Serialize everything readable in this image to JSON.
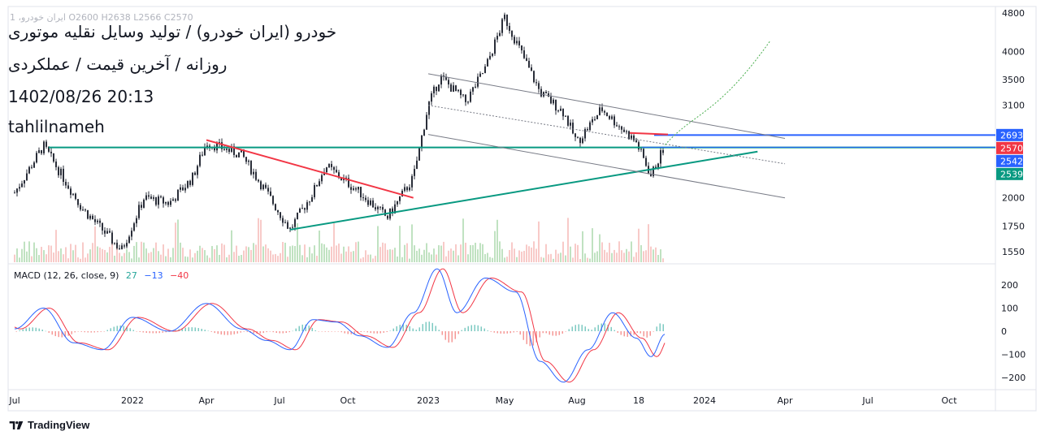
{
  "legend": {
    "symbol": "ایران خودرو، 1",
    "ohlc": "O2600  H2638  L2566  C2570"
  },
  "annotations": [
    "خودرو (ایران خودرو) / تولید وسایل نقلیه موتوری",
    "روزانه / آخرین قیمت / عملکردی",
    "1402/08/26 20:13",
    "tahlilnameh"
  ],
  "macd": {
    "label": "MACD (12, 26, close, 9)",
    "hist_value": "27",
    "macd_value": "−13",
    "signal_value": "−40",
    "ticks": [
      {
        "value": 200,
        "label": "200"
      },
      {
        "value": 100,
        "label": "100"
      },
      {
        "value": 0,
        "label": "0"
      },
      {
        "value": -100,
        "label": "−100"
      },
      {
        "value": -200,
        "label": "−200"
      }
    ]
  },
  "price_axis": {
    "ticks": [
      {
        "value": 4800,
        "label": "4800"
      },
      {
        "value": 4000,
        "label": "4000"
      },
      {
        "value": 3500,
        "label": "3500"
      },
      {
        "value": 3100,
        "label": "3100"
      },
      {
        "value": 2000,
        "label": "2000"
      },
      {
        "value": 1750,
        "label": "1750"
      },
      {
        "value": 1550,
        "label": "1550"
      }
    ],
    "badges": [
      {
        "value": 2693,
        "label": "2693",
        "color": "#2962ff"
      },
      {
        "value": 2570,
        "label": "2570",
        "color": "#f23645"
      },
      {
        "value": 2542,
        "label": "2542",
        "color": "#2962ff"
      },
      {
        "value": 2539,
        "label": "2539",
        "color": "#089981"
      }
    ]
  },
  "time_axis": [
    "Jul",
    "2022",
    "Apr",
    "Jul",
    "Oct",
    "2023",
    "May",
    "Aug",
    "18",
    "2024",
    "Apr",
    "Jul",
    "Oct"
  ],
  "colors": {
    "up": "#26a69a",
    "down": "#ef5350",
    "candle": "#2a2e39",
    "resistance": "#f23645",
    "support": "#089981",
    "level": "#2962ff",
    "channel": "#787b86",
    "projection": "#4caf50",
    "macd": "#2962ff",
    "signal": "#f23645"
  },
  "branding": "TradingView",
  "chart_data": {
    "type": "candlestick",
    "x_labels": [
      "Jul",
      "2022",
      "Apr",
      "Jul",
      "Oct",
      "2023",
      "May",
      "Aug",
      "18",
      "2024",
      "Apr",
      "Jul",
      "Oct"
    ],
    "y_scale": "log",
    "price_range": [
      1500,
      4900
    ],
    "series": [
      {
        "name": "price_path",
        "points": [
          [
            "2021-07-01",
            2050
          ],
          [
            "2021-08-15",
            2560
          ],
          [
            "2021-10-15",
            1900
          ],
          [
            "2021-12-15",
            1560
          ],
          [
            "2022-01-15",
            2000
          ],
          [
            "2022-02-15",
            1950
          ],
          [
            "2022-03-15",
            2200
          ],
          [
            "2022-04-01",
            2600
          ],
          [
            "2022-05-15",
            2450
          ],
          [
            "2022-06-15",
            2050
          ],
          [
            "2022-07-15",
            1720
          ],
          [
            "2022-08-15",
            2050
          ],
          [
            "2022-09-01",
            2330
          ],
          [
            "2022-10-15",
            2050
          ],
          [
            "2022-11-15",
            1820
          ],
          [
            "2022-12-15",
            2200
          ],
          [
            "2023-01-01",
            3100
          ],
          [
            "2023-01-20",
            3550
          ],
          [
            "2023-03-01",
            3150
          ],
          [
            "2023-04-01",
            3700
          ],
          [
            "2023-05-01",
            4700
          ],
          [
            "2023-06-15",
            3300
          ],
          [
            "2023-07-15",
            3000
          ],
          [
            "2023-08-01",
            2600
          ],
          [
            "2023-09-01",
            3050
          ],
          [
            "2023-10-15",
            2600
          ],
          [
            "2023-11-01",
            2220
          ],
          [
            "2023-11-17",
            2570
          ]
        ]
      }
    ],
    "drawings": [
      {
        "name": "horizontal support",
        "value": 2539
      },
      {
        "name": "horizontal resistance",
        "value": 2693
      },
      {
        "name": "blue level",
        "value": 2542
      },
      {
        "name": "red falling trendline",
        "from": [
          "2022-04-01",
          2630
        ],
        "to": [
          "2022-12-15",
          2000
        ]
      },
      {
        "name": "green rising trendline",
        "from": [
          "2022-07-15",
          1720
        ],
        "to": [
          "2024-03-01",
          2490
        ]
      },
      {
        "name": "channel upper",
        "from": [
          "2023-01-01",
          3600
        ],
        "to": [
          "2024-04-01",
          2650
        ]
      },
      {
        "name": "channel middle",
        "from": [
          "2023-01-01",
          3100
        ],
        "to": [
          "2024-04-01",
          2350
        ]
      },
      {
        "name": "channel lower",
        "from": [
          "2023-01-01",
          2700
        ],
        "to": [
          "2024-04-01",
          2000
        ]
      },
      {
        "name": "projection",
        "points": [
          [
            "2023-11-17",
            2570
          ],
          [
            "2023-12-20",
            3000
          ],
          [
            "2024-01-15",
            2950
          ],
          [
            "2024-03-15",
            4200
          ]
        ]
      }
    ],
    "macd": {
      "hist_last": 27,
      "macd_last": -13,
      "signal_last": -40,
      "ylim": [
        -230,
        270
      ],
      "points": [
        [
          "2021-07-01",
          10
        ],
        [
          "2021-08-15",
          100
        ],
        [
          "2021-10-01",
          -50
        ],
        [
          "2021-11-15",
          -80
        ],
        [
          "2022-01-01",
          60
        ],
        [
          "2022-02-15",
          0
        ],
        [
          "2022-04-01",
          120
        ],
        [
          "2022-05-15",
          10
        ],
        [
          "2022-06-15",
          -40
        ],
        [
          "2022-07-15",
          -80
        ],
        [
          "2022-08-15",
          50
        ],
        [
          "2022-09-15",
          40
        ],
        [
          "2022-10-15",
          -20
        ],
        [
          "2022-11-15",
          -70
        ],
        [
          "2022-12-15",
          80
        ],
        [
          "2023-01-15",
          270
        ],
        [
          "2023-02-15",
          80
        ],
        [
          "2023-04-01",
          230
        ],
        [
          "2023-05-15",
          170
        ],
        [
          "2023-06-15",
          -130
        ],
        [
          "2023-07-15",
          -220
        ],
        [
          "2023-08-15",
          -80
        ],
        [
          "2023-09-15",
          80
        ],
        [
          "2023-10-15",
          -30
        ],
        [
          "2023-11-01",
          -110
        ],
        [
          "2023-11-17",
          -13
        ]
      ]
    }
  }
}
